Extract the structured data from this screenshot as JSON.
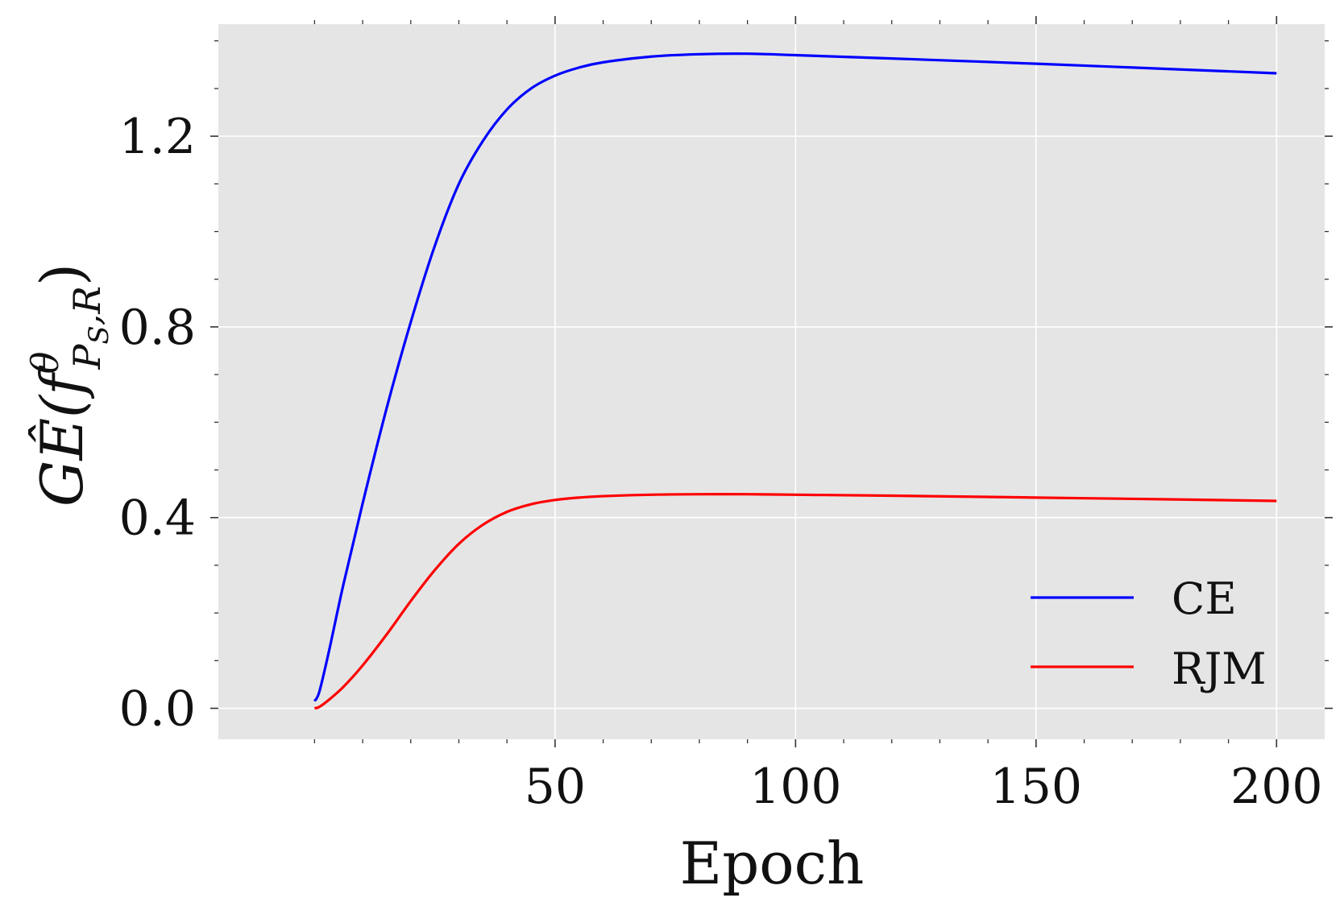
{
  "chart_data": {
    "type": "line",
    "xlabel": "Epoch",
    "ylabel": "GÊ(f^θ_{P_S,R})",
    "ylabel_parts": {
      "main": "GÊ(f",
      "sup": "θ",
      "sub": "P",
      "subsub": "S",
      "sub_tail": ",R",
      "close": ")"
    },
    "xlim": [
      -20,
      210
    ],
    "ylim": [
      -0.065,
      1.435
    ],
    "xticks": [
      50,
      100,
      150,
      200
    ],
    "xtick_labels": [
      "50",
      "100",
      "150",
      "200"
    ],
    "yticks": [
      0.0,
      0.4,
      0.8,
      1.2
    ],
    "ytick_labels": [
      "0.0",
      "0.4",
      "0.8",
      "1.2"
    ],
    "grid": true,
    "background_color": "#e5e5e5",
    "legend_position": "lower-right",
    "series": [
      {
        "name": "CE",
        "color": "#0000ff",
        "x": [
          0,
          1,
          3,
          6,
          10,
          15,
          20,
          25,
          30,
          35,
          40,
          45,
          50,
          55,
          60,
          70,
          80,
          90,
          100,
          120,
          150,
          180,
          200
        ],
        "y": [
          0.015,
          0.035,
          0.12,
          0.26,
          0.43,
          0.63,
          0.81,
          0.97,
          1.1,
          1.19,
          1.256,
          1.3,
          1.327,
          1.344,
          1.355,
          1.367,
          1.372,
          1.373,
          1.37,
          1.363,
          1.352,
          1.34,
          1.332
        ]
      },
      {
        "name": "RJM",
        "color": "#ff0000",
        "x": [
          0,
          1,
          3,
          6,
          10,
          15,
          20,
          25,
          30,
          35,
          40,
          45,
          50,
          55,
          60,
          70,
          80,
          90,
          100,
          120,
          150,
          180,
          200
        ],
        "y": [
          0.0,
          0.003,
          0.018,
          0.045,
          0.09,
          0.155,
          0.225,
          0.29,
          0.345,
          0.385,
          0.412,
          0.428,
          0.437,
          0.442,
          0.445,
          0.448,
          0.449,
          0.449,
          0.448,
          0.446,
          0.442,
          0.438,
          0.435
        ]
      }
    ]
  }
}
